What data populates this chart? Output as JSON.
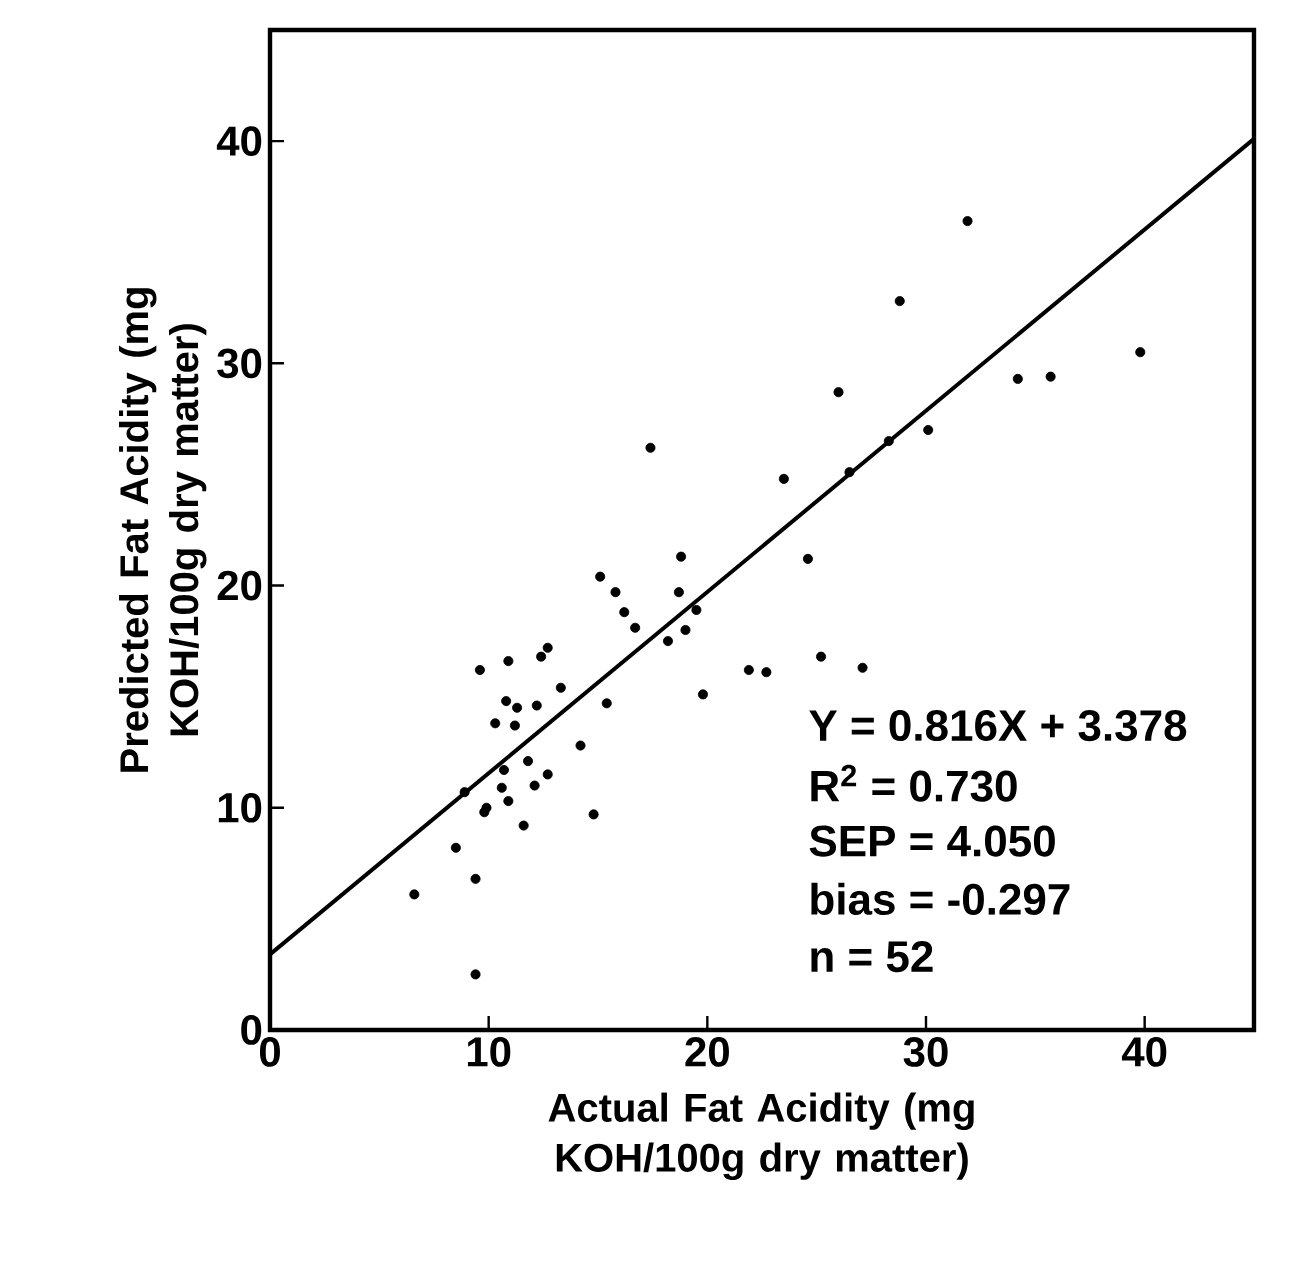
{
  "chart_data": {
    "type": "scatter",
    "xlabel": "Actual Fat Acidity (mg KOH/100g dry matter)",
    "ylabel": "Predicted Fat Acidity (mg KOH/100g dry matter)",
    "xlim": [
      0,
      45
    ],
    "ylim": [
      0,
      45
    ],
    "xticks": [
      0,
      10,
      20,
      30,
      40
    ],
    "yticks": [
      0,
      10,
      20,
      30,
      40
    ],
    "marker": "circle",
    "annotations": [
      "Y = 0.816X + 3.378",
      "R$^{2}$ = 0.730",
      "SEP = 4.050",
      "bias = -0.297",
      "n = 52"
    ],
    "series": [
      {
        "color": "#000000",
        "x": [
          15.1,
          15.8,
          18.7,
          16.2,
          16.7,
          19.5,
          18.2,
          19.0,
          12.7,
          12.4,
          9.6,
          10.9,
          21.9,
          22.7,
          13.3,
          19.8,
          10.8,
          11.3,
          12.2,
          15.4,
          10.3,
          11.2,
          14.2,
          11.8,
          10.7,
          12.7,
          8.9,
          10.6,
          12.1,
          10.9,
          9.9,
          9.8,
          14.8,
          11.6,
          8.5,
          9.4,
          6.6,
          9.4,
          31.9,
          28.8,
          39.8,
          34.2,
          35.7,
          26.0,
          17.4,
          28.3,
          30.1,
          23.5,
          26.5,
          24.6,
          18.8,
          25.2,
          27.1
        ],
        "values": [
          20.4,
          19.7,
          19.7,
          18.8,
          18.1,
          18.9,
          17.5,
          18.0,
          17.2,
          16.8,
          16.2,
          16.6,
          16.2,
          16.1,
          15.4,
          15.1,
          14.8,
          14.5,
          14.6,
          14.7,
          13.8,
          13.7,
          12.8,
          12.1,
          11.7,
          11.5,
          10.7,
          10.9,
          11.0,
          10.3,
          10.0,
          9.8,
          9.7,
          9.2,
          8.2,
          6.8,
          6.1,
          2.5,
          36.4,
          32.8,
          30.5,
          29.3,
          29.4,
          28.7,
          26.2,
          26.5,
          27.0,
          24.8,
          25.1,
          21.2,
          21.3,
          16.8,
          16.3
        ]
      },
      {
        "type": "line",
        "color": "#000000",
        "marker": "none",
        "line_style": "solid",
        "x": [
          0,
          45
        ],
        "values": [
          3.4,
          40.1
        ]
      }
    ]
  }
}
